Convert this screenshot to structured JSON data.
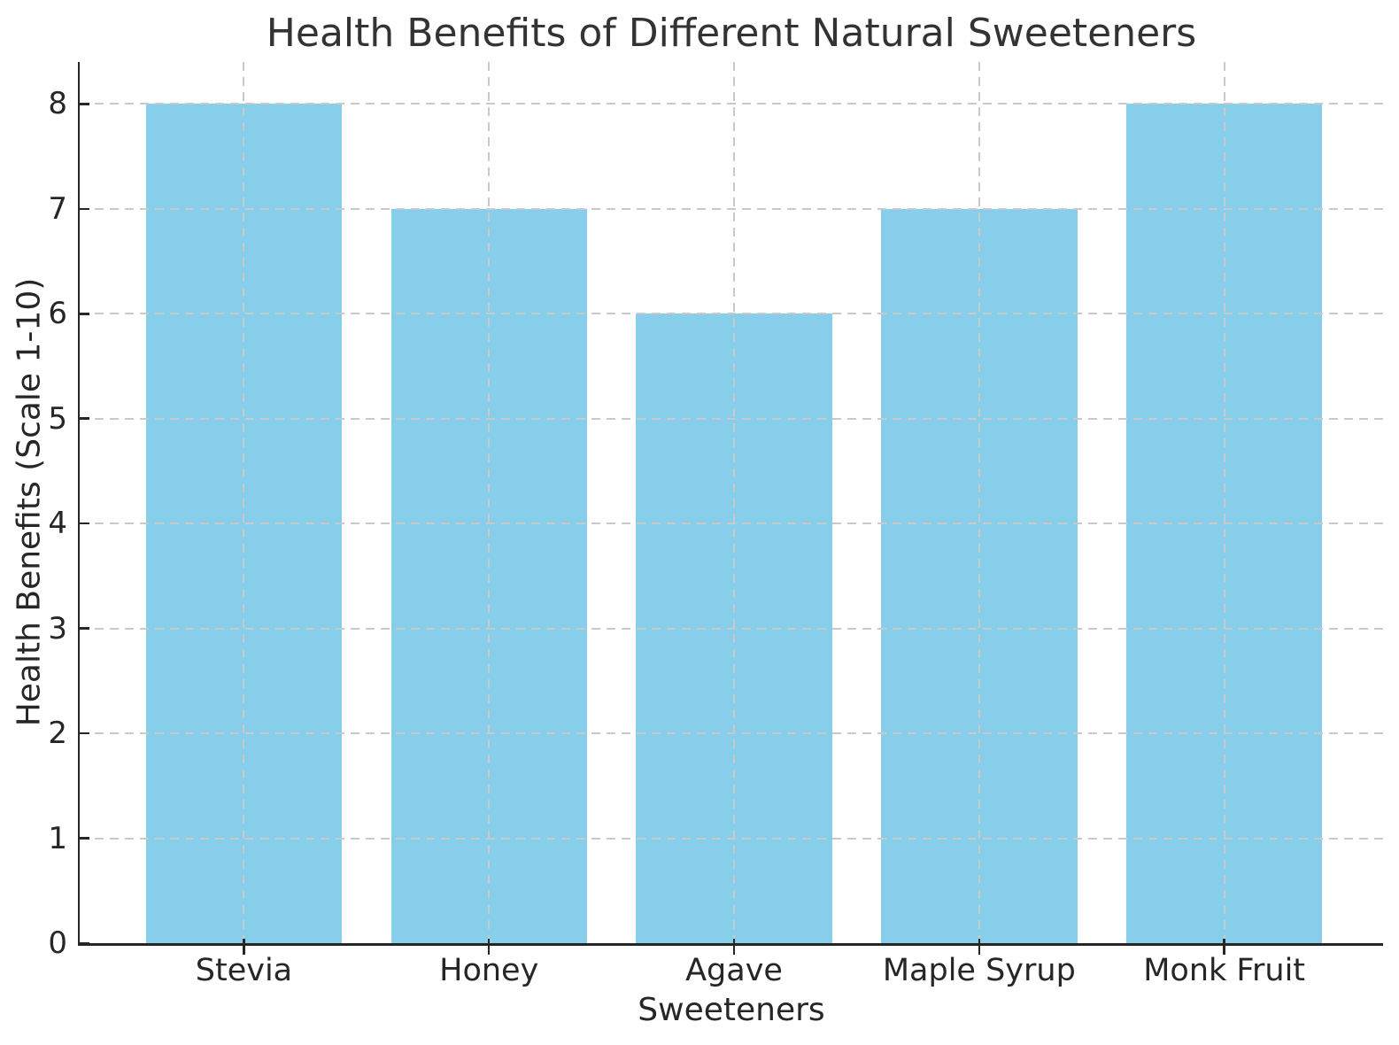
{
  "chart_data": {
    "type": "bar",
    "title": "Health Benefits of Different Natural Sweeteners",
    "xlabel": "Sweeteners",
    "ylabel": "Health Benefits (Scale 1-10)",
    "categories": [
      "Stevia",
      "Honey",
      "Agave",
      "Maple Syrup",
      "Monk Fruit"
    ],
    "values": [
      8,
      7,
      6,
      7,
      8
    ],
    "yticks": [
      0,
      1,
      2,
      3,
      4,
      5,
      6,
      7,
      8
    ],
    "ylim": [
      0,
      8.4
    ],
    "bar_color": "#87CEEB",
    "grid": {
      "visible": true,
      "style": "dashed",
      "axes": "both",
      "color": "#c9c9c9"
    },
    "axis_color": "#262626",
    "background_color": "#ffffff",
    "legend": null
  }
}
